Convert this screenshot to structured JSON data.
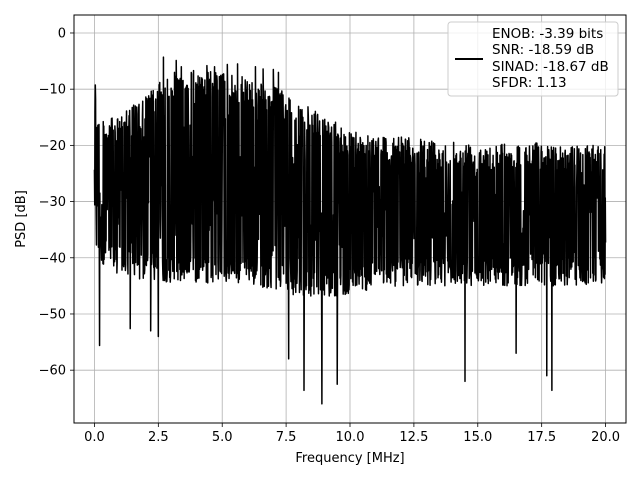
{
  "chart_data": {
    "type": "line",
    "xlabel": "Frequency [MHz]",
    "ylabel": "PSD [dB]",
    "xlim": [
      -0.8,
      20.8
    ],
    "ylim": [
      -69.4,
      3.2
    ],
    "xticks": [
      0.0,
      2.5,
      5.0,
      7.5,
      10.0,
      12.5,
      15.0,
      17.5,
      20.0
    ],
    "xtick_labels": [
      "0.0",
      "2.5",
      "5.0",
      "7.5",
      "10.0",
      "12.5",
      "15.0",
      "17.5",
      "20.0"
    ],
    "yticks": [
      0,
      -10,
      -20,
      -30,
      -40,
      -50,
      -60
    ],
    "ytick_labels": [
      "0",
      "−10",
      "−20",
      "−30",
      "−40",
      "−50",
      "−60"
    ],
    "grid": true,
    "legend_position": "top-right",
    "legend_lines": [
      "ENOB: -3.39 bits",
      "SNR: -18.59 dB",
      "SINAD: -18.67 dB",
      "SFDR: 1.13"
    ],
    "series_color": "#000000",
    "envelope": {
      "x": [
        0.0,
        0.1,
        0.5,
        1.0,
        2.0,
        2.5,
        3.0,
        4.0,
        5.0,
        6.0,
        7.0,
        7.5,
        8.0,
        9.0,
        10.0,
        11.0,
        12.0,
        13.0,
        14.0,
        15.0,
        16.0,
        17.0,
        18.0,
        19.0,
        20.0
      ],
      "top": [
        0.0,
        -14.5,
        -15.5,
        -14.5,
        -11.0,
        -9.0,
        -7.0,
        -6.5,
        -7.0,
        -8.0,
        -9.5,
        -10.5,
        -12.0,
        -15.0,
        -17.0,
        -18.0,
        -18.5,
        -19.0,
        -19.0,
        -19.5,
        -19.5,
        -19.5,
        -19.5,
        -20.0,
        -20.0
      ],
      "bottom": [
        -35.0,
        -40.0,
        -42.0,
        -43.0,
        -44.0,
        -44.0,
        -44.5,
        -44.5,
        -44.5,
        -45.0,
        -45.5,
        -46.0,
        -47.0,
        -47.0,
        -46.5,
        -45.5,
        -45.0,
        -45.0,
        -45.0,
        -45.0,
        -45.0,
        -45.0,
        -45.0,
        -45.0,
        -45.0
      ]
    },
    "spurs": {
      "x": [
        2.5,
        2.7,
        3.2,
        3.4,
        4.4,
        4.7,
        5.2,
        5.6,
        6.3,
        6.6,
        7.0,
        7.2
      ],
      "y": [
        -6.0,
        -4.3,
        -4.9,
        -6.0,
        -5.8,
        -6.0,
        -5.6,
        -5.5,
        -6.0,
        -6.4,
        -6.5,
        -7.0
      ]
    },
    "dips": {
      "x": [
        0.2,
        1.4,
        2.2,
        2.5,
        7.6,
        8.2,
        8.9,
        9.5,
        14.5,
        16.5,
        17.7,
        17.9
      ],
      "y": [
        -55.6,
        -52.6,
        -53.0,
        -54.0,
        -58.0,
        -63.6,
        -66.0,
        -62.5,
        -62.0,
        -57.0,
        -61.0,
        -63.6
      ]
    }
  }
}
